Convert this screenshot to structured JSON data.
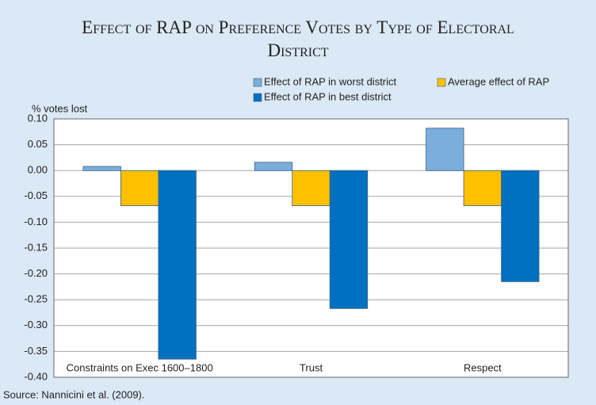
{
  "chart_data": {
    "type": "bar",
    "title": "Effect of RAP on Preference Votes by Type of Electoral District",
    "y_label": "% votes lost",
    "source": "Source: Nannicini et al. (2009).",
    "categories": [
      "Constraints on Exec 1600–1800",
      "Trust",
      "Respect"
    ],
    "series": [
      {
        "name": "Effect of RAP in worst district",
        "color": "#7aaedb",
        "values": [
          0.008,
          0.016,
          0.082
        ]
      },
      {
        "name": "Average effect of RAP",
        "color": "#ffc000",
        "values": [
          -0.068,
          -0.068,
          -0.068
        ]
      },
      {
        "name": "Effect of RAP in best district",
        "color": "#0070c0",
        "values": [
          -0.365,
          -0.267,
          -0.215
        ]
      }
    ],
    "ylim": [
      -0.4,
      0.1
    ],
    "yticks": [
      {
        "value": 0.1,
        "label": "0.10"
      },
      0.05,
      {
        "value": 0,
        "label": "0.00"
      },
      -0.05,
      {
        "value": -0.1,
        "label": "-0.10"
      },
      -0.15,
      {
        "value": -0.2,
        "label": "-0.20"
      },
      -0.25,
      {
        "value": -0.3,
        "label": "-0.30"
      },
      -0.35,
      {
        "value": -0.4,
        "label": "-0.40"
      }
    ],
    "grid": true,
    "legend": "top-right"
  }
}
